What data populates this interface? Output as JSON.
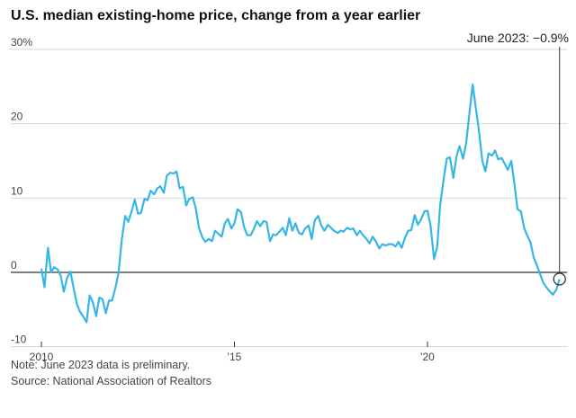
{
  "title": "U.S. median existing-home price, change from a year earlier",
  "annotation": "June 2023: −0.9%",
  "note": "Note: June 2023 data is preliminary.",
  "source": "Source: National Association of Realtors",
  "colors": {
    "line": "#36b6e6",
    "grid": "#d6d6d6",
    "zero": "#333333",
    "text": "#444444"
  },
  "chart_data": {
    "type": "line",
    "title": "U.S. median existing-home price, change from a year earlier",
    "xlabel": "",
    "ylabel": "",
    "x_ticks": [
      {
        "value": 2010,
        "label": "2010"
      },
      {
        "value": 2015,
        "label": "'15"
      },
      {
        "value": 2020,
        "label": "'20"
      }
    ],
    "y_ticks": [
      {
        "value": 30,
        "label": "30%"
      },
      {
        "value": 20,
        "label": "20"
      },
      {
        "value": 10,
        "label": "10"
      },
      {
        "value": 0,
        "label": "0"
      },
      {
        "value": -10,
        "label": "-10"
      }
    ],
    "xlim": [
      2010.0,
      2023.5
    ],
    "ylim": [
      -10,
      30
    ],
    "grid": "horizontal",
    "highlight_point": {
      "x": 2023.42,
      "y": -0.9
    },
    "series": [
      {
        "x": [
          2010.0,
          2010.08,
          2010.17,
          2010.25,
          2010.33,
          2010.42,
          2010.5,
          2010.58,
          2010.67,
          2010.75,
          2010.83,
          2010.92,
          2011.0,
          2011.08,
          2011.17,
          2011.25,
          2011.33,
          2011.42,
          2011.5,
          2011.58,
          2011.67,
          2011.75,
          2011.83,
          2011.92,
          2012.0,
          2012.08,
          2012.17,
          2012.25,
          2012.33,
          2012.42,
          2012.5,
          2012.58,
          2012.67,
          2012.75,
          2012.83,
          2012.92,
          2013.0,
          2013.08,
          2013.17,
          2013.25,
          2013.33,
          2013.42,
          2013.5,
          2013.58,
          2013.67,
          2013.75,
          2013.83,
          2013.92,
          2014.0,
          2014.08,
          2014.17,
          2014.25,
          2014.33,
          2014.42,
          2014.5,
          2014.58,
          2014.67,
          2014.75,
          2014.83,
          2014.92,
          2015.0,
          2015.08,
          2015.17,
          2015.25,
          2015.33,
          2015.42,
          2015.5,
          2015.58,
          2015.67,
          2015.75,
          2015.83,
          2015.92,
          2016.0,
          2016.08,
          2016.17,
          2016.25,
          2016.33,
          2016.42,
          2016.5,
          2016.58,
          2016.67,
          2016.75,
          2016.83,
          2016.92,
          2017.0,
          2017.08,
          2017.17,
          2017.25,
          2017.33,
          2017.42,
          2017.5,
          2017.58,
          2017.67,
          2017.75,
          2017.83,
          2017.92,
          2018.0,
          2018.08,
          2018.17,
          2018.25,
          2018.33,
          2018.42,
          2018.5,
          2018.58,
          2018.67,
          2018.75,
          2018.83,
          2018.92,
          2019.0,
          2019.08,
          2019.17,
          2019.25,
          2019.33,
          2019.42,
          2019.5,
          2019.58,
          2019.67,
          2019.75,
          2019.83,
          2019.92,
          2020.0,
          2020.08,
          2020.17,
          2020.25,
          2020.33,
          2020.42,
          2020.5,
          2020.58,
          2020.67,
          2020.75,
          2020.83,
          2020.92,
          2021.0,
          2021.08,
          2021.17,
          2021.25,
          2021.33,
          2021.42,
          2021.5,
          2021.58,
          2021.67,
          2021.75,
          2021.83,
          2021.92,
          2022.0,
          2022.08,
          2022.17,
          2022.25,
          2022.33,
          2022.42,
          2022.5,
          2022.58,
          2022.67,
          2022.75,
          2022.83,
          2022.92,
          2023.0,
          2023.08,
          2023.17,
          2023.25,
          2023.33,
          2023.42
        ],
        "values": [
          0.5,
          -2.0,
          3.3,
          0.0,
          0.7,
          0.4,
          -0.5,
          -2.6,
          -0.7,
          0.1,
          -2.0,
          -4.3,
          -5.3,
          -5.9,
          -6.7,
          -3.1,
          -4.0,
          -5.9,
          -3.4,
          -3.6,
          -5.5,
          -3.8,
          -3.8,
          -2.0,
          0.0,
          4.3,
          7.6,
          6.8,
          8.1,
          9.8,
          7.9,
          8.0,
          9.9,
          9.7,
          11.0,
          10.5,
          11.3,
          11.6,
          10.7,
          13.0,
          13.4,
          13.3,
          13.6,
          11.3,
          11.5,
          9.0,
          9.9,
          10.1,
          8.6,
          6.0,
          4.7,
          4.1,
          4.5,
          4.2,
          5.6,
          5.2,
          4.8,
          6.6,
          7.2,
          5.9,
          6.6,
          8.5,
          8.1,
          6.1,
          5.0,
          5.0,
          5.8,
          6.9,
          6.2,
          6.9,
          6.8,
          4.2,
          5.1,
          5.0,
          5.5,
          6.0,
          5.0,
          7.3,
          5.6,
          6.6,
          5.3,
          5.1,
          5.9,
          6.3,
          4.5,
          7.0,
          7.6,
          6.3,
          5.6,
          6.4,
          6.0,
          5.6,
          5.3,
          5.6,
          5.5,
          6.0,
          5.8,
          5.9,
          5.0,
          5.6,
          5.0,
          4.5,
          3.9,
          4.8,
          4.1,
          3.2,
          3.8,
          3.6,
          3.8,
          3.8,
          3.5,
          4.1,
          3.3,
          4.7,
          5.6,
          5.7,
          7.7,
          6.4,
          7.1,
          8.2,
          8.3,
          6.3,
          1.8,
          3.4,
          9.2,
          12.6,
          15.3,
          15.5,
          12.7,
          15.6,
          17.0,
          15.3,
          17.3,
          21.1,
          25.3,
          22.2,
          19.1,
          15.0,
          13.6,
          16.0,
          15.7,
          16.4,
          15.2,
          15.4,
          14.6,
          13.8,
          15.0,
          12.0,
          8.5,
          8.2,
          6.0,
          5.0,
          4.0,
          2.0,
          1.0,
          -0.3,
          -1.4,
          -2.0,
          -2.6,
          -3.0,
          -2.4,
          -0.9
        ]
      }
    ]
  }
}
